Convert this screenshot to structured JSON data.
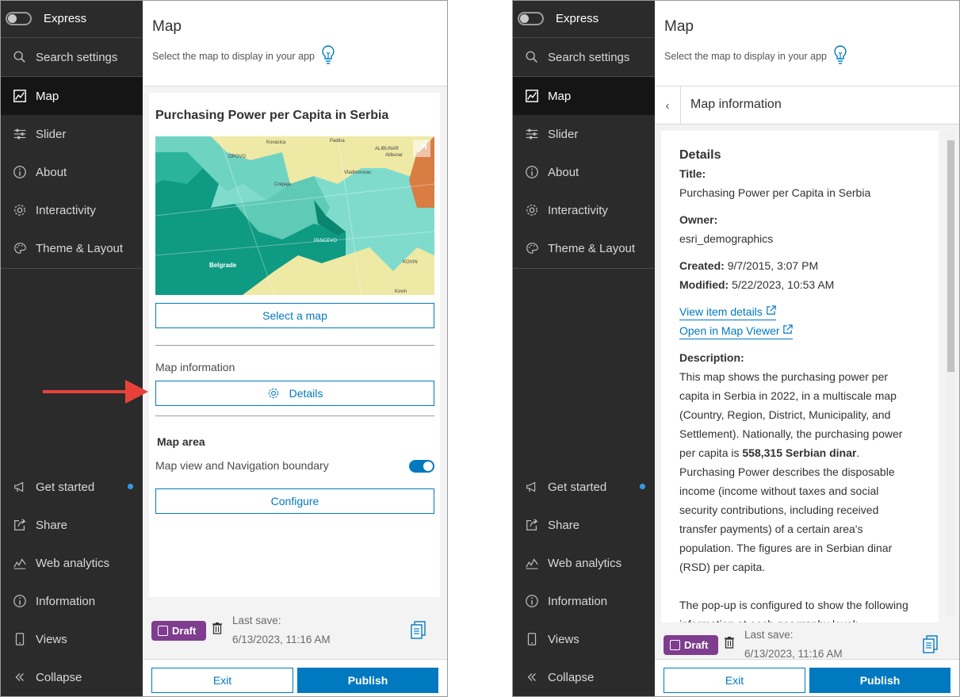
{
  "left": {
    "sidebar": {
      "mode_label": "Express",
      "items": [
        {
          "label": "Search settings",
          "icon": "search-icon"
        },
        {
          "label": "Map",
          "icon": "map-icon",
          "selected": true
        },
        {
          "label": "Slider",
          "icon": "slider-icon"
        },
        {
          "label": "About",
          "icon": "info-icon"
        },
        {
          "label": "Interactivity",
          "icon": "gear-icon"
        },
        {
          "label": "Theme & Layout",
          "icon": "palette-icon"
        }
      ],
      "bottom_items": [
        {
          "label": "Get started",
          "icon": "megaphone-icon",
          "badge_color": "#2f9ce8"
        },
        {
          "label": "Share",
          "icon": "share-icon"
        },
        {
          "label": "Web analytics",
          "icon": "analytics-icon"
        },
        {
          "label": "Information",
          "icon": "info-icon"
        },
        {
          "label": "Views",
          "icon": "phone-icon"
        },
        {
          "label": "Collapse",
          "icon": "collapse-icon"
        }
      ]
    },
    "header": {
      "title": "Map",
      "subtitle": "Select the map to display in your app"
    },
    "card": {
      "map_title": "Purchasing Power per Capita in Serbia",
      "map_labels": [
        "Kovacica",
        "Padina",
        "ALIBUNAR",
        "Alibunar",
        "OPOVO",
        "Vladimirovac",
        "Crepaja",
        "PANCEVO",
        "Belgrade",
        "KOVIN",
        "Kovin"
      ],
      "select_map_label": "Select a map",
      "map_info_label": "Map information",
      "details_label": "Details",
      "map_area_label": "Map area",
      "nav_boundary_label": "Map view and Navigation boundary",
      "nav_boundary_on": true,
      "configure_label": "Configure"
    },
    "status": {
      "draft_label": "Draft",
      "last_save_label": "Last save:",
      "last_save_time": "6/13/2023, 11:16 AM"
    },
    "footer": {
      "exit_label": "Exit",
      "publish_label": "Publish"
    },
    "colors": {
      "accent": "#0079c1",
      "draft": "#7e3d8e",
      "arrow": "#e8413a",
      "sidebar": "#2b2b2b"
    }
  },
  "right": {
    "sidebar": {
      "mode_label": "Express",
      "items": [
        {
          "label": "Search settings"
        },
        {
          "label": "Map",
          "selected": true
        },
        {
          "label": "Slider"
        },
        {
          "label": "About"
        },
        {
          "label": "Interactivity"
        },
        {
          "label": "Theme & Layout"
        }
      ],
      "bottom_items": [
        {
          "label": "Get started"
        },
        {
          "label": "Share"
        },
        {
          "label": "Web analytics"
        },
        {
          "label": "Information"
        },
        {
          "label": "Views"
        },
        {
          "label": "Collapse"
        }
      ]
    },
    "header": {
      "title": "Map",
      "subtitle": "Select the map to display in your app"
    },
    "subheader": {
      "title": "Map information"
    },
    "details": {
      "heading": "Details",
      "title_label": "Title:",
      "title_value": "Purchasing Power per Capita in Serbia",
      "owner_label": "Owner:",
      "owner_value": "esri_demographics",
      "created_label": "Created:",
      "created_value": "9/7/2015, 3:07 PM",
      "modified_label": "Modified:",
      "modified_value": "5/22/2023, 10:53 AM",
      "view_item_link": "View item details",
      "open_viewer_link": "Open in Map Viewer",
      "description_label": "Description:",
      "desc_part1": "This map shows the purchasing power per capita in Serbia in 2022, in a multiscale map (Country, Region, District, Municipality, and Settlement). Nationally, the purchasing power per capita is ",
      "desc_bold": "558,315 Serbian dinar",
      "desc_part2": ". Purchasing Power describes the disposable income (income without taxes and social security contributions, including received transfer payments) of a certain area's population. The figures are in Serbian dinar (RSD) per capita.",
      "desc_para2": "The pop-up is configured to show the following information at each geography level:"
    },
    "status": {
      "draft_label": "Draft",
      "last_save_label": "Last save:",
      "last_save_time": "6/13/2023, 11:16 AM"
    },
    "footer": {
      "exit_label": "Exit",
      "publish_label": "Publish"
    }
  }
}
